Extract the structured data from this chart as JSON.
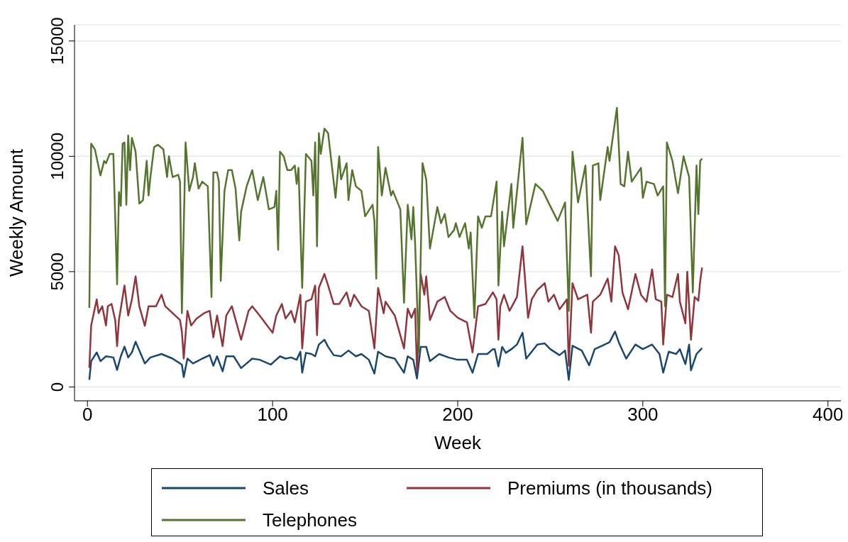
{
  "chart_data": {
    "type": "line",
    "xlabel": "Week",
    "ylabel": "Weekly Amount",
    "xlim": [
      -7,
      407
    ],
    "xticks": [
      0,
      100,
      200,
      300,
      400
    ],
    "ylim": [
      -600,
      15700
    ],
    "yticks": [
      0,
      5000,
      10000,
      15000
    ],
    "grid": "y",
    "legend": "bottom",
    "series": [
      {
        "name": "Sales",
        "color": "#1a476f",
        "x": [
          1,
          2,
          5,
          7,
          10,
          14,
          16,
          18,
          20,
          22,
          24,
          26,
          31,
          34,
          40,
          46,
          51,
          52,
          54,
          57,
          62,
          66,
          68,
          70,
          73,
          75,
          79,
          83,
          89,
          93,
          99,
          104,
          107,
          110,
          113,
          115,
          116,
          118,
          121,
          123,
          125,
          128,
          130,
          133,
          137,
          141,
          145,
          148,
          152,
          155,
          157,
          161,
          166,
          171,
          173,
          176,
          178,
          180,
          183,
          185,
          190,
          195,
          200,
          205,
          208,
          211,
          216,
          219,
          220,
          222,
          224,
          226,
          229,
          232,
          235,
          237,
          243,
          247,
          250,
          255,
          258,
          260,
          262,
          267,
          271,
          274,
          278,
          282,
          285,
          287,
          291,
          296,
          300,
          305,
          309,
          311,
          314,
          318,
          320,
          323,
          325,
          326,
          329,
          332
        ],
        "values": [
          310,
          1120,
          1500,
          1120,
          1330,
          1280,
          740,
          1330,
          1750,
          1280,
          1500,
          1960,
          1020,
          1280,
          1430,
          1230,
          970,
          430,
          1230,
          1020,
          1230,
          1380,
          920,
          1330,
          680,
          1330,
          1330,
          820,
          1230,
          1180,
          970,
          1330,
          1230,
          1280,
          1180,
          1530,
          620,
          1480,
          1430,
          1330,
          1840,
          2050,
          1740,
          1380,
          1330,
          1580,
          1330,
          1430,
          1180,
          580,
          1530,
          1330,
          1230,
          620,
          1330,
          1180,
          370,
          1740,
          1740,
          1120,
          1430,
          1280,
          1180,
          1180,
          620,
          1430,
          1430,
          1640,
          1640,
          890,
          1740,
          1480,
          1640,
          1840,
          2350,
          1230,
          1840,
          1890,
          1640,
          1380,
          1580,
          310,
          1790,
          1580,
          940,
          1640,
          1790,
          1940,
          2400,
          1940,
          1230,
          1840,
          1640,
          1840,
          1430,
          620,
          1530,
          1430,
          1640,
          990,
          1840,
          720,
          1430,
          1690
        ]
      },
      {
        "name": "Premiums (in thousands)",
        "color": "#90353b",
        "x": [
          1,
          2,
          5,
          6,
          8,
          10,
          11,
          13,
          15,
          16,
          17,
          20,
          22,
          24,
          26,
          28,
          31,
          33,
          37,
          40,
          42,
          46,
          50,
          51,
          52,
          54,
          56,
          59,
          63,
          66,
          68,
          70,
          73,
          75,
          78,
          83,
          87,
          89,
          93,
          100,
          102,
          105,
          107,
          110,
          112,
          115,
          116,
          118,
          121,
          123,
          124,
          125,
          128,
          130,
          133,
          136,
          140,
          142,
          144,
          148,
          152,
          155,
          157,
          160,
          161,
          166,
          171,
          173,
          175,
          177,
          178,
          180,
          182,
          183,
          185,
          189,
          193,
          196,
          200,
          205,
          208,
          211,
          215,
          219,
          221,
          222,
          223,
          225,
          228,
          232,
          235,
          238,
          240,
          243,
          247,
          249,
          252,
          255,
          259,
          260,
          262,
          265,
          270,
          272,
          273,
          277,
          281,
          283,
          285,
          287,
          289,
          292,
          296,
          299,
          302,
          305,
          307,
          310,
          311,
          313,
          316,
          319,
          320,
          323,
          324,
          326,
          328,
          330,
          331,
          332
        ],
        "values": [
          830,
          2670,
          3800,
          3200,
          3500,
          2670,
          3500,
          3600,
          2900,
          1770,
          2900,
          4400,
          3100,
          3800,
          4800,
          3500,
          2650,
          3500,
          3500,
          4000,
          3500,
          3200,
          2900,
          2400,
          1230,
          3300,
          2670,
          2970,
          3200,
          3300,
          2150,
          3100,
          1770,
          3100,
          3500,
          2050,
          3300,
          3500,
          3100,
          2350,
          3100,
          3600,
          2970,
          3300,
          2800,
          4000,
          1670,
          3700,
          3800,
          4400,
          2250,
          4300,
          4900,
          4400,
          3600,
          3600,
          4100,
          3500,
          4000,
          3500,
          3300,
          1670,
          4300,
          3200,
          3700,
          3100,
          1670,
          3400,
          3000,
          3400,
          670,
          4900,
          4000,
          4800,
          2900,
          3700,
          3900,
          3300,
          3000,
          2800,
          1500,
          3500,
          3600,
          4100,
          3800,
          2050,
          3500,
          4000,
          3300,
          3900,
          6100,
          3000,
          3800,
          4200,
          4500,
          3700,
          4000,
          3370,
          3800,
          920,
          4500,
          3800,
          4000,
          2350,
          3700,
          4000,
          4700,
          3700,
          6100,
          5700,
          4100,
          3370,
          4900,
          4000,
          3700,
          5100,
          3800,
          3700,
          1840,
          4000,
          3900,
          4900,
          3700,
          2760,
          5000,
          2050,
          3900,
          3740,
          4600,
          5180
        ]
      },
      {
        "name": "Telephones",
        "color": "#55752f",
        "x": [
          1,
          2,
          4,
          7,
          9,
          10,
          12,
          14,
          16,
          17,
          18,
          19,
          20,
          21,
          22,
          23,
          24,
          26,
          28,
          30,
          32,
          33,
          34,
          36,
          38,
          41,
          43,
          44,
          46,
          49,
          50,
          51,
          53,
          55,
          57,
          58,
          60,
          62,
          65,
          67,
          68,
          70,
          71,
          72,
          74,
          76,
          78,
          80,
          82,
          83,
          86,
          89,
          92,
          95,
          98,
          101,
          102,
          103,
          104,
          106,
          108,
          110,
          112,
          113,
          114,
          116,
          118,
          121,
          122,
          123,
          124,
          125,
          126,
          128,
          130,
          134,
          136,
          137,
          140,
          141,
          143,
          145,
          148,
          150,
          154,
          155,
          156,
          157,
          159,
          161,
          164,
          165,
          169,
          171,
          173,
          175,
          176,
          177,
          179,
          181,
          183,
          185,
          189,
          191,
          193,
          195,
          198,
          199,
          201,
          204,
          206,
          207,
          209,
          211,
          213,
          215,
          218,
          221,
          222,
          224,
          225,
          229,
          230,
          235,
          237,
          242,
          246,
          249,
          254,
          258,
          260,
          262,
          265,
          269,
          272,
          273,
          276,
          277,
          281,
          282,
          286,
          288,
          290,
          292,
          294,
          299,
          300,
          302,
          306,
          308,
          311,
          312,
          313,
          316,
          319,
          322,
          324,
          325,
          327,
          329,
          330,
          331,
          332
        ],
        "values": [
          3430,
          10550,
          10300,
          9170,
          9800,
          9700,
          10100,
          10100,
          4450,
          8450,
          7850,
          10550,
          10600,
          7900,
          10900,
          9400,
          10800,
          10200,
          7950,
          8100,
          9800,
          8300,
          9100,
          10400,
          10500,
          10300,
          9100,
          10000,
          9100,
          9200,
          8900,
          3200,
          10600,
          8500,
          9100,
          9700,
          8600,
          8900,
          8700,
          3900,
          9300,
          9300,
          8900,
          4600,
          8500,
          9400,
          9400,
          8600,
          6350,
          7600,
          8700,
          9400,
          8100,
          9100,
          7700,
          7800,
          8500,
          5950,
          10200,
          10000,
          9400,
          9400,
          9600,
          8800,
          9500,
          4300,
          10100,
          9800,
          8300,
          10600,
          6100,
          11000,
          10100,
          11200,
          11000,
          8200,
          10000,
          9000,
          9700,
          8100,
          9400,
          8700,
          8500,
          7400,
          7900,
          7200,
          4700,
          10400,
          8300,
          9500,
          8300,
          8500,
          7700,
          3650,
          7900,
          6400,
          7800,
          6200,
          1500,
          9700,
          9000,
          6000,
          7800,
          7100,
          7500,
          6500,
          6800,
          7100,
          6500,
          7100,
          6000,
          6700,
          3000,
          7400,
          6900,
          7400,
          7400,
          8900,
          4400,
          7600,
          6100,
          8800,
          6900,
          10800,
          7050,
          8800,
          8500,
          8000,
          7200,
          8000,
          3300,
          10200,
          8000,
          9600,
          4800,
          9600,
          9700,
          8100,
          10400,
          9800,
          12100,
          8800,
          8700,
          10200,
          8900,
          9500,
          8200,
          8900,
          8800,
          8300,
          8700,
          3500,
          10600,
          9800,
          8400,
          10000,
          9400,
          9100,
          4100,
          9600,
          7500,
          9800,
          9900
        ]
      }
    ]
  }
}
